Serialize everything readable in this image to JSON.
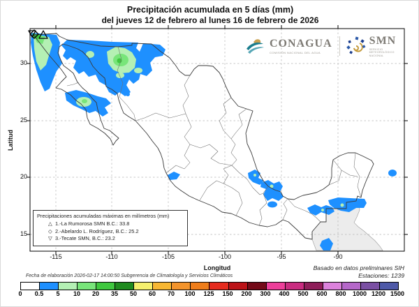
{
  "title": {
    "line1": "Precipitación acumulada en 5 días (mm)",
    "line2": "del jueves 12 de febrero al lunes 16 de febrero de 2026"
  },
  "logos": {
    "conagua": {
      "name": "CONAGUA",
      "tagline": "COMISIÓN NACIONAL DEL AGUA"
    },
    "smn": {
      "name": "SMN",
      "tagline": "SERVICIO METEOROLÓGICO NACIONAL"
    }
  },
  "map": {
    "x_axis": {
      "label": "Longitud",
      "ticks": [
        "-115",
        "-110",
        "-105",
        "-100",
        "-95",
        "-90"
      ]
    },
    "y_axis": {
      "label": "Latitud",
      "ticks": [
        "30",
        "25",
        "20",
        "15"
      ]
    },
    "legend_box": {
      "title": "Precipitaciones acumuladas máximas en milímetros (mm)",
      "items": [
        {
          "symbol": "△",
          "label": "1.-La Rumorosa SMN B.C.: 33.8"
        },
        {
          "symbol": "◇",
          "label": "2.-Abelardo L. Rodríguez, B.C.: 25.2"
        },
        {
          "symbol": "▽",
          "label": "3.-Tecate SMN, B.C.: 23.2"
        }
      ]
    },
    "notes": {
      "source": "Basado en datos preliminares SIH",
      "stations": "Estaciones:  1239"
    }
  },
  "footer": {
    "elaboration": "Fecha de elaboración 2026-02-17 14:00:50 Subgerencia de Climatología y Servicios Climáticos"
  },
  "colorbar": {
    "tick_labels": [
      "0",
      "0.5",
      "5",
      "10",
      "20",
      "35",
      "50",
      "60",
      "70",
      "100",
      "125",
      "150",
      "200",
      "300",
      "400",
      "500",
      "600",
      "800",
      "1000",
      "1200",
      "1500"
    ],
    "colors": [
      "#FFFFFF",
      "#1E90FF",
      "#B4F0B4",
      "#78E57A",
      "#3FC83F",
      "#1F8B1F",
      "#F5F06E",
      "#F7B733",
      "#F3942C",
      "#EF7D1A",
      "#E62B1E",
      "#BC1318",
      "#740A18",
      "#ED3F9A",
      "#C92C80",
      "#8F1E5A",
      "#DC82DC",
      "#B567C9",
      "#7A4FA3",
      "#4E59A8"
    ]
  },
  "colors": {
    "rain_blue": "#1E90FF",
    "rain_green_light": "#B4F0B4",
    "rain_green_mid": "#78E57A",
    "rain_green_dark": "#3FC83F",
    "neighbor_gray": "#ECECEC"
  }
}
